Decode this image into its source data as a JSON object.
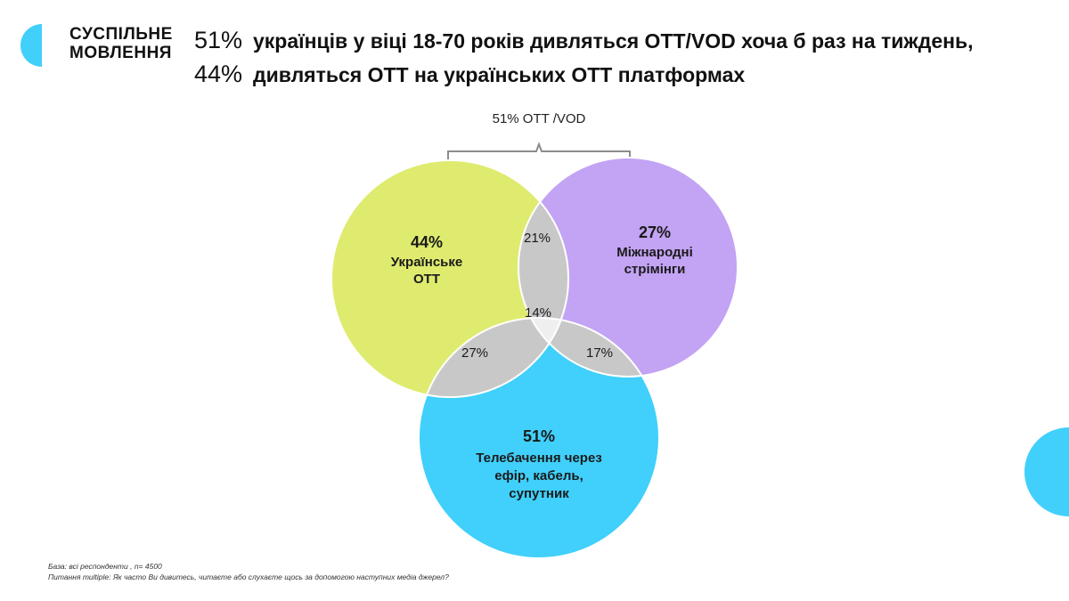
{
  "brand": {
    "line1": "СУСПІЛЬНЕ",
    "line2": "МОВЛЕННЯ",
    "accent_color": "#40d0fb"
  },
  "title": {
    "line1_pct": "51%",
    "line1_text": "українців у віці 18-70 років дивляться OTT/VOD хоча б раз на тиждень,",
    "line2_pct": "44%",
    "line2_text": "дивляться ОТТ на українських ОТТ платформах"
  },
  "bracket_label": "51% OTT /VOD",
  "venn": {
    "circles": [
      {
        "id": "ukrainian-ott",
        "value": "44%",
        "label_lines": [
          "Українське",
          "OTT"
        ],
        "color": "#dfeb6e"
      },
      {
        "id": "international-streaming",
        "value": "27%",
        "label_lines": [
          "Міжнародні",
          "стрімінги"
        ],
        "color": "#c3a3f4"
      },
      {
        "id": "broadcast-tv",
        "value": "51%",
        "label_lines": [
          "Телебачення через",
          "ефір, кабель,",
          "супутник"
        ],
        "color": "#40d0fb"
      }
    ],
    "overlaps": {
      "ukr_intl": "21%",
      "ukr_tv": "27%",
      "intl_tv": "17%",
      "all": "14%"
    },
    "overlap_color": "#c8c8c8",
    "center_color": "#efefef"
  },
  "footer": {
    "base": "База: всі респонденти , n= 4500",
    "question": "Питання multiple: Як часто Ви дивитесь, читаєте або слухаєте щось за допомогою наступних медіа джерел?"
  }
}
